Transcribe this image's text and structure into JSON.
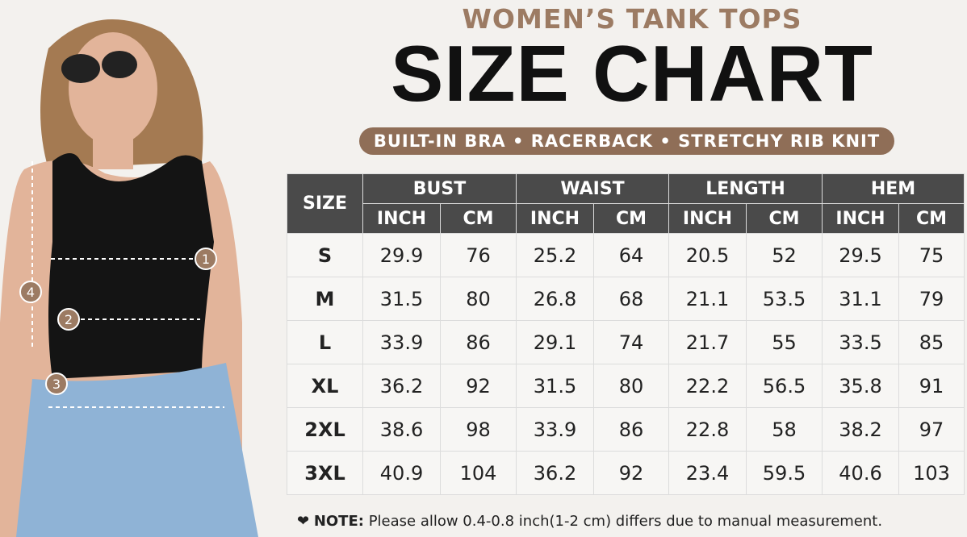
{
  "header": {
    "kicker": "WOMEN’S TANK TOPS",
    "title": "SIZE CHART",
    "features": "BUILT-IN BRA • RACERBACK • STRETCHY RIB KNIT"
  },
  "markers": [
    "1",
    "2",
    "3",
    "4"
  ],
  "table": {
    "size_header": "SIZE",
    "groups": [
      "BUST",
      "WAIST",
      "LENGTH",
      "HEM"
    ],
    "units": [
      "INCH",
      "CM"
    ],
    "rows": [
      [
        "S",
        "29.9",
        "76",
        "25.2",
        "64",
        "20.5",
        "52",
        "29.5",
        "75"
      ],
      [
        "M",
        "31.5",
        "80",
        "26.8",
        "68",
        "21.1",
        "53.5",
        "31.1",
        "79"
      ],
      [
        "L",
        "33.9",
        "86",
        "29.1",
        "74",
        "21.7",
        "55",
        "33.5",
        "85"
      ],
      [
        "XL",
        "36.2",
        "92",
        "31.5",
        "80",
        "22.2",
        "56.5",
        "35.8",
        "91"
      ],
      [
        "2XL",
        "38.6",
        "98",
        "33.9",
        "86",
        "22.8",
        "58",
        "38.2",
        "97"
      ],
      [
        "3XL",
        "40.9",
        "104",
        "36.2",
        "92",
        "23.4",
        "59.5",
        "40.6",
        "103"
      ]
    ]
  },
  "note": {
    "label": "NOTE:",
    "text": "Please allow 0.4-0.8 inch(1-2 cm) differs due to manual measurement."
  }
}
